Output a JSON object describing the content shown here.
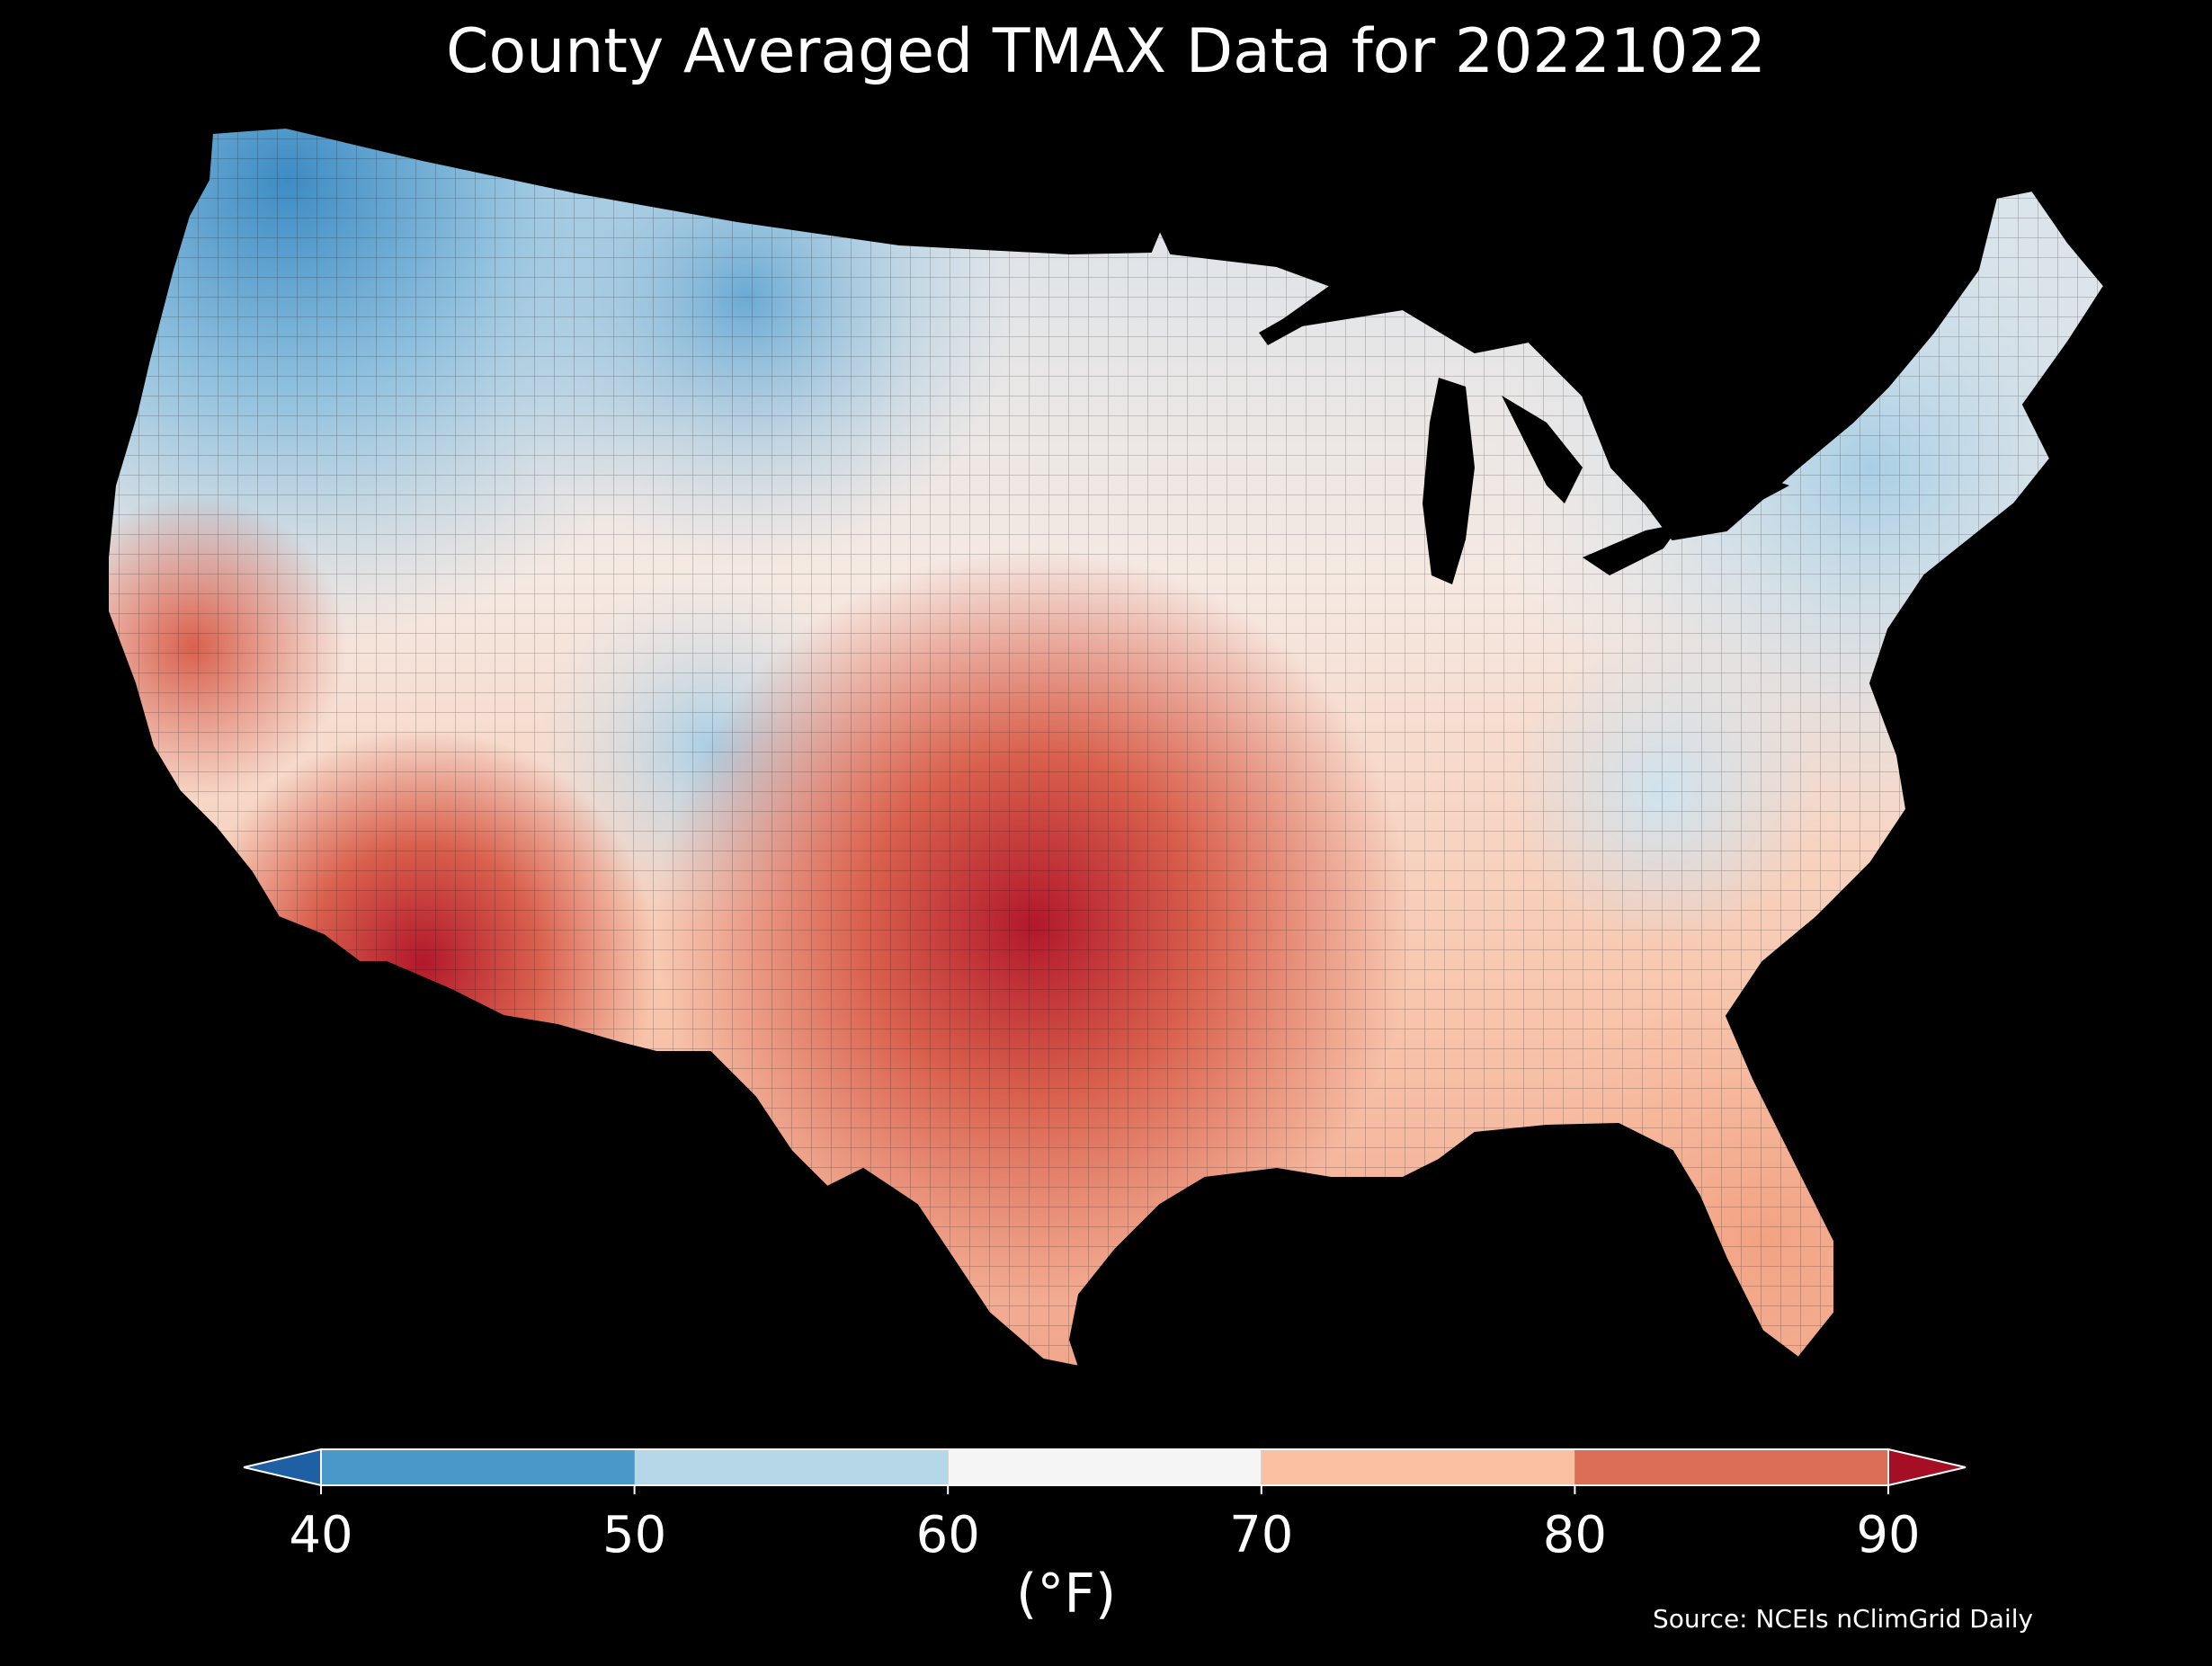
{
  "title": "County Averaged TMAX Data for 20221022",
  "colorbar": {
    "ticks": [
      "40",
      "50",
      "60",
      "70",
      "80",
      "90"
    ],
    "bins": [
      {
        "from": 40,
        "to": 50,
        "color": "#4a98c9"
      },
      {
        "from": 50,
        "to": 60,
        "color": "#b6d7e8"
      },
      {
        "from": 60,
        "to": 70,
        "color": "#f5f5f5"
      },
      {
        "from": 70,
        "to": 80,
        "color": "#f9c0a2"
      },
      {
        "from": 80,
        "to": 90,
        "color": "#dc6e57"
      }
    ],
    "under_color": "#1f5fa3",
    "over_color": "#a50f25",
    "unit": "(°F)"
  },
  "source": "Source: NCEIs nClimGrid Daily",
  "map": {
    "background": "#000000",
    "colors": {
      "cold": "#3d8cc4",
      "cool": "#a9cfe5",
      "neutral": "#f3f3f3",
      "warm": "#f7b89b",
      "hot": "#d9604d",
      "hottest": "#b2182b",
      "lake": "#000000"
    }
  }
}
